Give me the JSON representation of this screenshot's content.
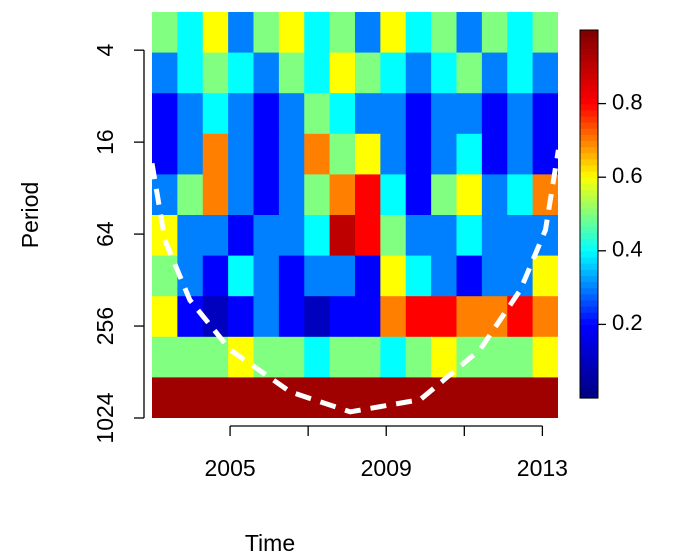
{
  "chart_data": {
    "type": "heatmap",
    "x_label": "Time",
    "y_label": "Period",
    "xlim": [
      2003.0,
      2013.4
    ],
    "xticks": [
      2005,
      2009,
      2013
    ],
    "xminor_ticks": [
      2007,
      2011
    ],
    "ylim": [
      2.25,
      1024
    ],
    "yticks": [
      4,
      16,
      64,
      256,
      1024
    ],
    "ylog": 2,
    "yreversed": true,
    "z": [
      [
        0.5,
        0.4,
        0.6,
        0.3,
        0.5,
        0.6,
        0.4,
        0.5,
        0.3,
        0.6,
        0.4,
        0.5,
        0.3,
        0.5,
        0.4,
        0.5
      ],
      [
        0.3,
        0.4,
        0.5,
        0.4,
        0.3,
        0.5,
        0.4,
        0.6,
        0.5,
        0.4,
        0.3,
        0.4,
        0.5,
        0.3,
        0.4,
        0.3
      ],
      [
        0.2,
        0.3,
        0.4,
        0.3,
        0.2,
        0.3,
        0.5,
        0.4,
        0.3,
        0.3,
        0.2,
        0.3,
        0.3,
        0.2,
        0.3,
        0.2
      ],
      [
        0.2,
        0.3,
        0.7,
        0.3,
        0.2,
        0.3,
        0.7,
        0.5,
        0.6,
        0.3,
        0.2,
        0.3,
        0.4,
        0.2,
        0.3,
        0.2
      ],
      [
        0.3,
        0.5,
        0.7,
        0.3,
        0.2,
        0.3,
        0.5,
        0.7,
        0.8,
        0.4,
        0.2,
        0.5,
        0.6,
        0.3,
        0.4,
        0.7
      ],
      [
        0.6,
        0.3,
        0.3,
        0.2,
        0.3,
        0.3,
        0.4,
        0.9,
        0.8,
        0.5,
        0.3,
        0.3,
        0.4,
        0.3,
        0.3,
        0.3
      ],
      [
        0.5,
        0.3,
        0.2,
        0.4,
        0.3,
        0.2,
        0.3,
        0.3,
        0.2,
        0.6,
        0.4,
        0.3,
        0.2,
        0.3,
        0.3,
        0.6
      ],
      [
        0.6,
        0.2,
        0.1,
        0.2,
        0.3,
        0.2,
        0.1,
        0.2,
        0.2,
        0.7,
        0.8,
        0.8,
        0.7,
        0.7,
        0.8,
        0.7
      ],
      [
        0.5,
        0.5,
        0.5,
        0.6,
        0.5,
        0.5,
        0.4,
        0.5,
        0.5,
        0.4,
        0.5,
        0.6,
        0.5,
        0.5,
        0.5,
        0.6
      ],
      [
        0.95,
        0.95,
        0.95,
        0.95,
        0.95,
        0.95,
        0.95,
        0.95,
        0.95,
        0.95,
        0.95,
        0.95,
        0.95,
        0.95,
        0.95,
        0.95
      ]
    ],
    "colors": [
      "#00007f",
      "#0000ff",
      "#00ffff",
      "#ffff00",
      "#ff0000",
      "#7f0000"
    ],
    "clim": [
      0,
      1
    ],
    "cticks": [
      0.2,
      0.4,
      0.6,
      0.8
    ],
    "coi": {
      "color": "#ffffff",
      "x": [
        2003.0,
        2003.33,
        2003.97,
        2005.0,
        2006.54,
        2008.08,
        2009.87,
        2011.4,
        2012.44,
        2013.08,
        2013.41
      ],
      "period": [
        22,
        70,
        173,
        366,
        690,
        933,
        777,
        366,
        148,
        60,
        18
      ]
    }
  }
}
